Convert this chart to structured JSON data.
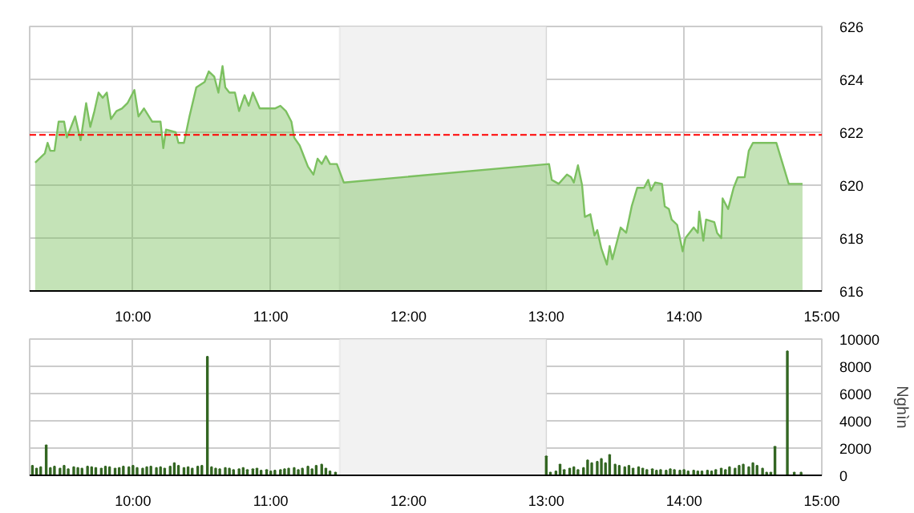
{
  "chart_data": [
    {
      "type": "area",
      "x": [
        9.29,
        9.36,
        9.38,
        9.4,
        9.43,
        9.46,
        9.5,
        9.52,
        9.58,
        9.62,
        9.66,
        9.69,
        9.72,
        9.75,
        9.78,
        9.81,
        9.84,
        9.88,
        9.92,
        9.96,
        10.01,
        10.04,
        10.08,
        10.14,
        10.2,
        10.22,
        10.24,
        10.31,
        10.33,
        10.37,
        10.41,
        10.46,
        10.52,
        10.55,
        10.59,
        10.62,
        10.65,
        10.67,
        10.7,
        10.74,
        10.77,
        10.81,
        10.84,
        10.87,
        10.92,
        10.98,
        11.03,
        11.07,
        11.11,
        11.15,
        11.17,
        11.21,
        11.24,
        11.27,
        11.31,
        11.34,
        11.37,
        11.4,
        11.43,
        11.48,
        11.53,
        13.02,
        13.04,
        13.09,
        13.15,
        13.18,
        13.2,
        13.23,
        13.26,
        13.28,
        13.32,
        13.35,
        13.37,
        13.4,
        13.44,
        13.46,
        13.48,
        13.52,
        13.54,
        13.58,
        13.62,
        13.66,
        13.71,
        13.74,
        13.76,
        13.79,
        13.84,
        13.86,
        13.89,
        13.91,
        13.95,
        13.99,
        14.01,
        14.07,
        14.1,
        14.11,
        14.14,
        14.16,
        14.22,
        14.24,
        14.27,
        14.28,
        14.32,
        14.36,
        14.39,
        14.44,
        14.47,
        14.5,
        14.67,
        14.76,
        14.86
      ],
      "series": [
        {
          "color": "#7cc060",
          "values": [
            620.85,
            621.2,
            621.6,
            621.3,
            621.3,
            622.4,
            622.4,
            621.8,
            622.6,
            621.7,
            623.1,
            622.2,
            622.8,
            623.5,
            623.3,
            623.5,
            622.5,
            622.8,
            622.9,
            623.1,
            623.6,
            622.6,
            622.9,
            622.4,
            622.4,
            621.4,
            622.1,
            622.0,
            621.6,
            621.6,
            622.6,
            623.7,
            623.9,
            624.3,
            624.1,
            623.5,
            624.5,
            623.7,
            623.5,
            623.5,
            622.8,
            623.4,
            623.0,
            623.5,
            622.9,
            622.9,
            622.9,
            623.0,
            622.8,
            622.4,
            621.8,
            621.5,
            621.1,
            620.7,
            620.4,
            621.0,
            620.8,
            621.1,
            620.8,
            620.8,
            620.1,
            620.8,
            620.2,
            620.05,
            620.4,
            620.3,
            620.1,
            620.75,
            620.0,
            618.8,
            618.9,
            618.1,
            618.3,
            617.6,
            617.0,
            617.7,
            617.2,
            618.0,
            618.4,
            618.2,
            619.2,
            619.9,
            619.9,
            620.2,
            619.8,
            620.1,
            620.05,
            619.2,
            619.1,
            618.7,
            618.5,
            617.5,
            618.0,
            618.4,
            618.2,
            619.0,
            617.9,
            618.7,
            618.6,
            618.2,
            618.0,
            619.5,
            619.1,
            619.9,
            620.3,
            620.3,
            621.3,
            621.6,
            621.6,
            620.05,
            620.05
          ]
        }
      ],
      "xlim": [
        9.25,
        15
      ],
      "xticks": [
        {
          "value": 10,
          "label": "10:00"
        },
        {
          "value": 11,
          "label": "11:00"
        },
        {
          "value": 12,
          "label": "12:00"
        },
        {
          "value": 13,
          "label": "13:00"
        },
        {
          "value": 14,
          "label": "14:00"
        },
        {
          "value": 15,
          "label": "15:00"
        }
      ],
      "ylim": [
        616,
        626
      ],
      "yticks": [
        616,
        618,
        620,
        622,
        624,
        626
      ],
      "grid": true,
      "ref_lines": [
        {
          "axis": "y",
          "value": 621.9,
          "color": "#ff0000",
          "line_style": "dashed"
        }
      ],
      "bands": [
        {
          "axis": "x",
          "from": 11.5,
          "to": 13,
          "color": "#f2f2f2"
        }
      ]
    },
    {
      "type": "bar",
      "x": [
        9.27,
        9.3,
        9.33,
        9.37,
        9.4,
        9.43,
        9.47,
        9.5,
        9.53,
        9.57,
        9.6,
        9.63,
        9.67,
        9.7,
        9.73,
        9.77,
        9.8,
        9.83,
        9.87,
        9.9,
        9.93,
        9.97,
        10.0,
        10.03,
        10.07,
        10.1,
        10.13,
        10.17,
        10.2,
        10.23,
        10.27,
        10.3,
        10.33,
        10.37,
        10.4,
        10.43,
        10.47,
        10.5,
        10.54,
        10.57,
        10.6,
        10.63,
        10.67,
        10.7,
        10.73,
        10.77,
        10.8,
        10.83,
        10.87,
        10.9,
        10.93,
        10.97,
        11.0,
        11.03,
        11.07,
        11.1,
        11.13,
        11.17,
        11.2,
        11.23,
        11.27,
        11.3,
        11.33,
        11.37,
        11.4,
        11.43,
        11.47,
        13.0,
        13.03,
        13.07,
        13.1,
        13.13,
        13.17,
        13.2,
        13.23,
        13.27,
        13.3,
        13.33,
        13.37,
        13.4,
        13.43,
        13.46,
        13.5,
        13.53,
        13.57,
        13.6,
        13.63,
        13.67,
        13.7,
        13.73,
        13.77,
        13.8,
        13.83,
        13.87,
        13.9,
        13.93,
        13.97,
        14.0,
        14.03,
        14.07,
        14.1,
        14.13,
        14.17,
        14.2,
        14.23,
        14.27,
        14.3,
        14.33,
        14.37,
        14.4,
        14.43,
        14.47,
        14.5,
        14.53,
        14.57,
        14.6,
        14.63,
        14.66,
        14.75,
        14.8,
        14.85
      ],
      "series": [
        {
          "color": "#336622",
          "values": [
            700,
            500,
            600,
            2200,
            550,
            650,
            500,
            700,
            450,
            600,
            550,
            500,
            650,
            600,
            550,
            500,
            650,
            600,
            500,
            550,
            650,
            600,
            700,
            550,
            500,
            600,
            650,
            550,
            600,
            500,
            650,
            900,
            700,
            550,
            600,
            500,
            650,
            700,
            8700,
            600,
            500,
            450,
            550,
            500,
            400,
            450,
            550,
            400,
            450,
            500,
            350,
            400,
            300,
            350,
            400,
            450,
            500,
            550,
            400,
            500,
            650,
            450,
            700,
            800,
            500,
            300,
            200,
            1400,
            200,
            300,
            800,
            400,
            500,
            600,
            400,
            550,
            1100,
            900,
            1000,
            1200,
            900,
            1500,
            800,
            700,
            600,
            700,
            500,
            600,
            500,
            400,
            450,
            350,
            400,
            350,
            450,
            400,
            350,
            400,
            300,
            350,
            300,
            300,
            350,
            300,
            400,
            500,
            400,
            600,
            500,
            700,
            800,
            600,
            900,
            700,
            500,
            200,
            200,
            2100,
            9100,
            200,
            200
          ]
        }
      ],
      "xlim": [
        9.25,
        15
      ],
      "xticks": [
        {
          "value": 10,
          "label": "10:00"
        },
        {
          "value": 11,
          "label": "11:00"
        },
        {
          "value": 12,
          "label": "12:00"
        },
        {
          "value": 13,
          "label": "13:00"
        },
        {
          "value": 14,
          "label": "14:00"
        },
        {
          "value": 15,
          "label": "15:00"
        }
      ],
      "ylim": [
        0,
        10000
      ],
      "yticks": [
        0,
        2000,
        4000,
        6000,
        8000,
        10000
      ],
      "ylabel": "Nghìn",
      "grid": true,
      "bands": [
        {
          "axis": "x",
          "from": 11.5,
          "to": 13,
          "color": "#f2f2f2"
        }
      ]
    }
  ]
}
